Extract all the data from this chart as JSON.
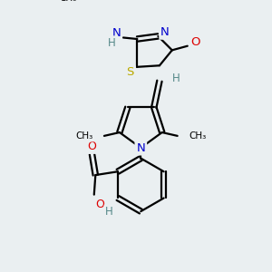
{
  "bg_color": "#eaeff1",
  "atom_colors": {
    "C": "#000000",
    "N": "#0000cc",
    "O": "#dd0000",
    "S": "#bbaa00",
    "H": "#558888"
  },
  "bond_lw": 1.6,
  "bond_color": "#000000"
}
